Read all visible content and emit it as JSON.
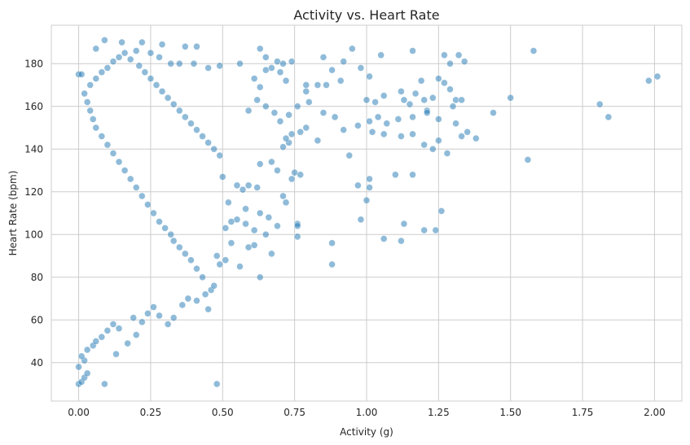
{
  "chart_data": {
    "type": "scatter",
    "title": "Activity vs. Heart Rate",
    "xlabel": "Activity (g)",
    "ylabel": "Heart Rate (bpm)",
    "xlim": [
      -0.095,
      2.095
    ],
    "ylim": [
      22,
      198
    ],
    "x_ticks": [
      0.0,
      0.25,
      0.5,
      0.75,
      1.0,
      1.25,
      1.5,
      1.75,
      2.0
    ],
    "x_tick_labels": [
      "0.00",
      "0.25",
      "0.50",
      "0.75",
      "1.00",
      "1.25",
      "1.50",
      "1.75",
      "2.00"
    ],
    "y_ticks": [
      40,
      60,
      80,
      100,
      120,
      140,
      160,
      180
    ],
    "y_tick_labels": [
      "40",
      "60",
      "80",
      "100",
      "120",
      "140",
      "160",
      "180"
    ],
    "grid": true,
    "point_color": "#1f77b4",
    "point_alpha": 0.5,
    "series": [
      {
        "points": [
          [
            0.09,
            191
          ],
          [
            0.15,
            190
          ],
          [
            0.22,
            190
          ],
          [
            0.29,
            189
          ],
          [
            0.37,
            188
          ],
          [
            0.41,
            188
          ],
          [
            0.06,
            187
          ],
          [
            0.95,
            187
          ],
          [
            0.63,
            187
          ],
          [
            1.58,
            186
          ],
          [
            1.16,
            186
          ],
          [
            0.0,
            175
          ],
          [
            0.01,
            175
          ],
          [
            0.2,
            186
          ],
          [
            0.25,
            185
          ],
          [
            0.28,
            183
          ],
          [
            0.32,
            180
          ],
          [
            0.35,
            180
          ],
          [
            0.4,
            180
          ],
          [
            0.45,
            178
          ],
          [
            0.49,
            179
          ],
          [
            0.56,
            180
          ],
          [
            0.65,
            183
          ],
          [
            0.69,
            181
          ],
          [
            0.71,
            180
          ],
          [
            0.74,
            181
          ],
          [
            0.85,
            183
          ],
          [
            0.92,
            181
          ],
          [
            1.05,
            184
          ],
          [
            1.27,
            184
          ],
          [
            1.32,
            184
          ],
          [
            1.34,
            181
          ],
          [
            1.29,
            180
          ],
          [
            0.98,
            178
          ],
          [
            1.01,
            174
          ],
          [
            0.88,
            177
          ],
          [
            0.79,
            170
          ],
          [
            0.83,
            170
          ],
          [
            0.91,
            172
          ],
          [
            1.19,
            172
          ],
          [
            1.25,
            173
          ],
          [
            1.27,
            171
          ],
          [
            1.29,
            168
          ],
          [
            1.17,
            166
          ],
          [
            1.12,
            167
          ],
          [
            1.06,
            165
          ],
          [
            1.0,
            163
          ],
          [
            1.03,
            162
          ],
          [
            1.13,
            163
          ],
          [
            1.15,
            161
          ],
          [
            1.2,
            163
          ],
          [
            1.23,
            164
          ],
          [
            1.31,
            163
          ],
          [
            1.33,
            163
          ],
          [
            1.5,
            164
          ],
          [
            1.44,
            157
          ],
          [
            1.3,
            160
          ],
          [
            1.21,
            158
          ],
          [
            1.04,
            155
          ],
          [
            1.01,
            153
          ],
          [
            1.07,
            152
          ],
          [
            1.11,
            154
          ],
          [
            1.16,
            155
          ],
          [
            1.21,
            157
          ],
          [
            1.25,
            154
          ],
          [
            1.31,
            152
          ],
          [
            1.35,
            148
          ],
          [
            1.38,
            145
          ],
          [
            1.33,
            146
          ],
          [
            1.25,
            144
          ],
          [
            1.2,
            142
          ],
          [
            1.23,
            140
          ],
          [
            1.28,
            138
          ],
          [
            1.16,
            147
          ],
          [
            1.12,
            146
          ],
          [
            1.06,
            147
          ],
          [
            1.02,
            148
          ],
          [
            0.97,
            151
          ],
          [
            0.92,
            149
          ],
          [
            0.89,
            155
          ],
          [
            0.85,
            157
          ],
          [
            0.8,
            162
          ],
          [
            0.76,
            160
          ],
          [
            0.73,
            156
          ],
          [
            0.7,
            153
          ],
          [
            0.68,
            157
          ],
          [
            0.65,
            160
          ],
          [
            0.62,
            163
          ],
          [
            0.59,
            158
          ],
          [
            0.74,
            147
          ],
          [
            0.77,
            148
          ],
          [
            0.79,
            150
          ],
          [
            0.83,
            144
          ],
          [
            0.73,
            143
          ],
          [
            0.71,
            141
          ],
          [
            0.72,
            145
          ],
          [
            0.67,
            134
          ],
          [
            0.69,
            130
          ],
          [
            0.74,
            126
          ],
          [
            0.75,
            129
          ],
          [
            0.77,
            128
          ],
          [
            0.63,
            133
          ],
          [
            0.59,
            123
          ],
          [
            0.62,
            122
          ],
          [
            0.57,
            121
          ],
          [
            0.55,
            123
          ],
          [
            0.5,
            127
          ],
          [
            0.52,
            115
          ],
          [
            0.58,
            112
          ],
          [
            0.63,
            110
          ],
          [
            0.66,
            108
          ],
          [
            0.71,
            118
          ],
          [
            0.72,
            115
          ],
          [
            0.76,
            105
          ],
          [
            0.76,
            104
          ],
          [
            0.69,
            104
          ],
          [
            0.65,
            100
          ],
          [
            0.61,
            102
          ],
          [
            0.58,
            105
          ],
          [
            0.55,
            107
          ],
          [
            0.53,
            106
          ],
          [
            0.51,
            103
          ],
          [
            0.53,
            96
          ],
          [
            0.59,
            94
          ],
          [
            0.61,
            95
          ],
          [
            0.67,
            91
          ],
          [
            0.56,
            85
          ],
          [
            0.63,
            80
          ],
          [
            0.51,
            88
          ],
          [
            0.48,
            90
          ],
          [
            0.49,
            86
          ],
          [
            0.76,
            99
          ],
          [
            0.88,
            96
          ],
          [
            0.88,
            86
          ],
          [
            0.98,
            107
          ],
          [
            1.0,
            116
          ],
          [
            1.01,
            122
          ],
          [
            1.01,
            126
          ],
          [
            1.1,
            128
          ],
          [
            1.16,
            128
          ],
          [
            1.06,
            98
          ],
          [
            1.12,
            97
          ],
          [
            1.13,
            105
          ],
          [
            1.2,
            102
          ],
          [
            1.24,
            102
          ],
          [
            1.26,
            111
          ],
          [
            1.56,
            135
          ],
          [
            1.81,
            161
          ],
          [
            1.84,
            155
          ],
          [
            1.98,
            172
          ],
          [
            2.01,
            174
          ],
          [
            0.97,
            123
          ],
          [
            0.94,
            137
          ],
          [
            0.86,
            170
          ],
          [
            0.79,
            167
          ],
          [
            0.72,
            172
          ],
          [
            0.7,
            176
          ],
          [
            0.67,
            178
          ],
          [
            0.65,
            177
          ],
          [
            0.63,
            169
          ],
          [
            0.61,
            173
          ],
          [
            0.48,
            30
          ],
          [
            0.09,
            30
          ],
          [
            0.0,
            30
          ],
          [
            0.01,
            31
          ],
          [
            0.02,
            33
          ],
          [
            0.03,
            35
          ],
          [
            0.0,
            38
          ],
          [
            0.02,
            41
          ],
          [
            0.01,
            43
          ],
          [
            0.03,
            46
          ],
          [
            0.05,
            48
          ],
          [
            0.06,
            50
          ],
          [
            0.08,
            52
          ],
          [
            0.1,
            55
          ],
          [
            0.12,
            58
          ],
          [
            0.14,
            56
          ],
          [
            0.13,
            44
          ],
          [
            0.17,
            49
          ],
          [
            0.2,
            53
          ],
          [
            0.19,
            61
          ],
          [
            0.22,
            59
          ],
          [
            0.24,
            63
          ],
          [
            0.26,
            66
          ],
          [
            0.28,
            62
          ],
          [
            0.31,
            58
          ],
          [
            0.33,
            61
          ],
          [
            0.36,
            67
          ],
          [
            0.38,
            70
          ],
          [
            0.41,
            69
          ],
          [
            0.44,
            72
          ],
          [
            0.46,
            74
          ],
          [
            0.47,
            76
          ],
          [
            0.45,
            65
          ],
          [
            0.43,
            80
          ],
          [
            0.41,
            84
          ],
          [
            0.39,
            88
          ],
          [
            0.37,
            91
          ],
          [
            0.35,
            94
          ],
          [
            0.33,
            97
          ],
          [
            0.32,
            100
          ],
          [
            0.3,
            103
          ],
          [
            0.28,
            106
          ],
          [
            0.26,
            110
          ],
          [
            0.24,
            114
          ],
          [
            0.22,
            118
          ],
          [
            0.2,
            122
          ],
          [
            0.18,
            126
          ],
          [
            0.16,
            130
          ],
          [
            0.14,
            134
          ],
          [
            0.12,
            138
          ],
          [
            0.1,
            142
          ],
          [
            0.08,
            146
          ],
          [
            0.06,
            150
          ],
          [
            0.05,
            154
          ],
          [
            0.04,
            158
          ],
          [
            0.03,
            162
          ],
          [
            0.02,
            166
          ],
          [
            0.04,
            170
          ],
          [
            0.06,
            173
          ],
          [
            0.08,
            176
          ],
          [
            0.1,
            178
          ],
          [
            0.12,
            181
          ],
          [
            0.14,
            183
          ],
          [
            0.16,
            185
          ],
          [
            0.18,
            182
          ],
          [
            0.21,
            179
          ],
          [
            0.23,
            176
          ],
          [
            0.25,
            173
          ],
          [
            0.27,
            170
          ],
          [
            0.29,
            167
          ],
          [
            0.31,
            164
          ],
          [
            0.33,
            161
          ],
          [
            0.35,
            158
          ],
          [
            0.37,
            155
          ],
          [
            0.39,
            152
          ],
          [
            0.41,
            149
          ],
          [
            0.43,
            146
          ],
          [
            0.45,
            143
          ],
          [
            0.47,
            140
          ],
          [
            0.49,
            137
          ]
        ]
      }
    ]
  }
}
